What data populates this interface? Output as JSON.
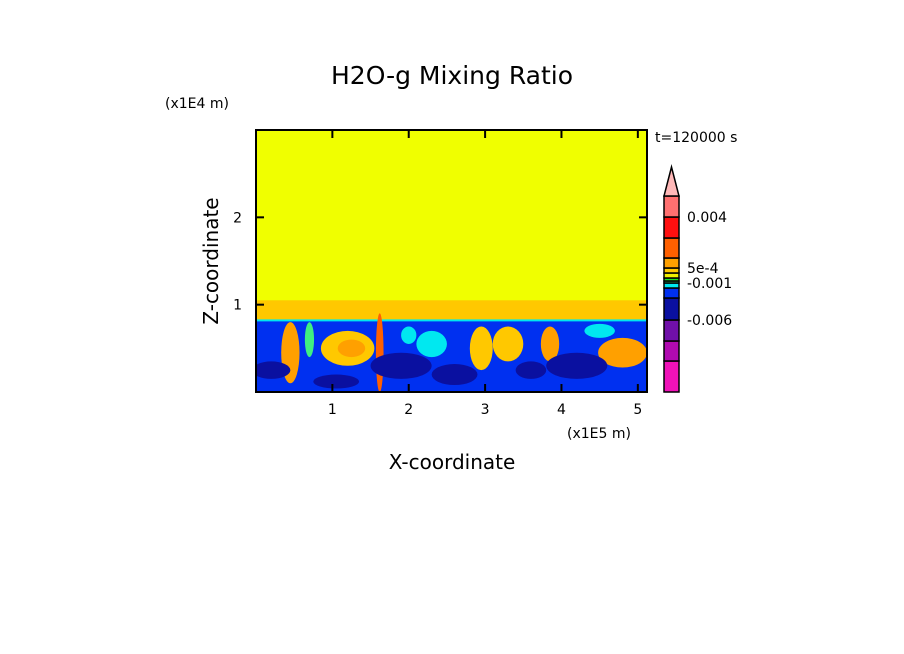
{
  "chart_data": {
    "type": "heatmap",
    "title": "H2O-g Mixing Ratio",
    "time_label": "t=120000 s",
    "xlabel": "X-coordinate",
    "ylabel": "Z-coordinate",
    "x_scale_label": "(x1E5 m)",
    "y_scale_label": "(x1E4 m)",
    "xlim": [
      0,
      5.12
    ],
    "ylim": [
      0,
      3.0
    ],
    "xticks": [
      {
        "v": 1,
        "label": "1"
      },
      {
        "v": 2,
        "label": "2"
      },
      {
        "v": 3,
        "label": "3"
      },
      {
        "v": 4,
        "label": "4"
      },
      {
        "v": 5,
        "label": "5"
      }
    ],
    "yticks": [
      {
        "v": 1,
        "label": "1"
      },
      {
        "v": 2,
        "label": "2"
      }
    ],
    "colorbar": {
      "colors": [
        "#f012b8",
        "#b00ab0",
        "#7010a8",
        "#0a10a0",
        "#0030f0",
        "#00e8f0",
        "#40f080",
        "#20e020",
        "#f0f000",
        "#ffc800",
        "#ffa000",
        "#ff6000",
        "#ff1010",
        "#ff7070"
      ],
      "overflow_color": "#ffb8b8",
      "labels": [
        {
          "level": "0.004",
          "index": 12
        },
        {
          "level": "5e-4",
          "index": 9
        },
        {
          "level": "-0.001",
          "index": 5
        },
        {
          "level": "-0.006",
          "index": 2
        }
      ]
    },
    "field": {
      "upper_value_color": "#f0ff00",
      "boundary_layer_top_z": 0.82,
      "transition_top_z": 1.05,
      "transition_color": "#ffc800",
      "lower_color": "#0030f0",
      "blobs": [
        {
          "x": 0.45,
          "z": 0.45,
          "rx": 0.12,
          "rz": 0.35,
          "color": "#ffa000"
        },
        {
          "x": 1.2,
          "z": 0.5,
          "rx": 0.35,
          "rz": 0.2,
          "color": "#ffc800"
        },
        {
          "x": 1.25,
          "z": 0.5,
          "rx": 0.18,
          "rz": 0.1,
          "color": "#ffa000"
        },
        {
          "x": 1.62,
          "z": 0.45,
          "rx": 0.05,
          "rz": 0.45,
          "color": "#ff6000"
        },
        {
          "x": 2.3,
          "z": 0.55,
          "rx": 0.2,
          "rz": 0.15,
          "color": "#00e8f0"
        },
        {
          "x": 2.95,
          "z": 0.5,
          "rx": 0.15,
          "rz": 0.25,
          "color": "#ffc800"
        },
        {
          "x": 3.3,
          "z": 0.55,
          "rx": 0.2,
          "rz": 0.2,
          "color": "#ffc800"
        },
        {
          "x": 3.85,
          "z": 0.55,
          "rx": 0.12,
          "rz": 0.2,
          "color": "#ffa000"
        },
        {
          "x": 4.8,
          "z": 0.45,
          "rx": 0.32,
          "rz": 0.17,
          "color": "#ffa000"
        },
        {
          "x": 0.2,
          "z": 0.25,
          "rx": 0.25,
          "rz": 0.1,
          "color": "#0a10a0"
        },
        {
          "x": 1.9,
          "z": 0.3,
          "rx": 0.4,
          "rz": 0.15,
          "color": "#0a10a0"
        },
        {
          "x": 2.6,
          "z": 0.2,
          "rx": 0.3,
          "rz": 0.12,
          "color": "#0a10a0"
        },
        {
          "x": 4.2,
          "z": 0.3,
          "rx": 0.4,
          "rz": 0.15,
          "color": "#0a10a0"
        },
        {
          "x": 3.6,
          "z": 0.25,
          "rx": 0.2,
          "rz": 0.1,
          "color": "#0a10a0"
        },
        {
          "x": 1.05,
          "z": 0.12,
          "rx": 0.3,
          "rz": 0.08,
          "color": "#0a10a0"
        },
        {
          "x": 0.7,
          "z": 0.6,
          "rx": 0.06,
          "rz": 0.2,
          "color": "#40f080"
        },
        {
          "x": 2.0,
          "z": 0.65,
          "rx": 0.1,
          "rz": 0.1,
          "color": "#00e8f0"
        },
        {
          "x": 4.5,
          "z": 0.7,
          "rx": 0.2,
          "rz": 0.08,
          "color": "#00e8f0"
        }
      ]
    }
  }
}
